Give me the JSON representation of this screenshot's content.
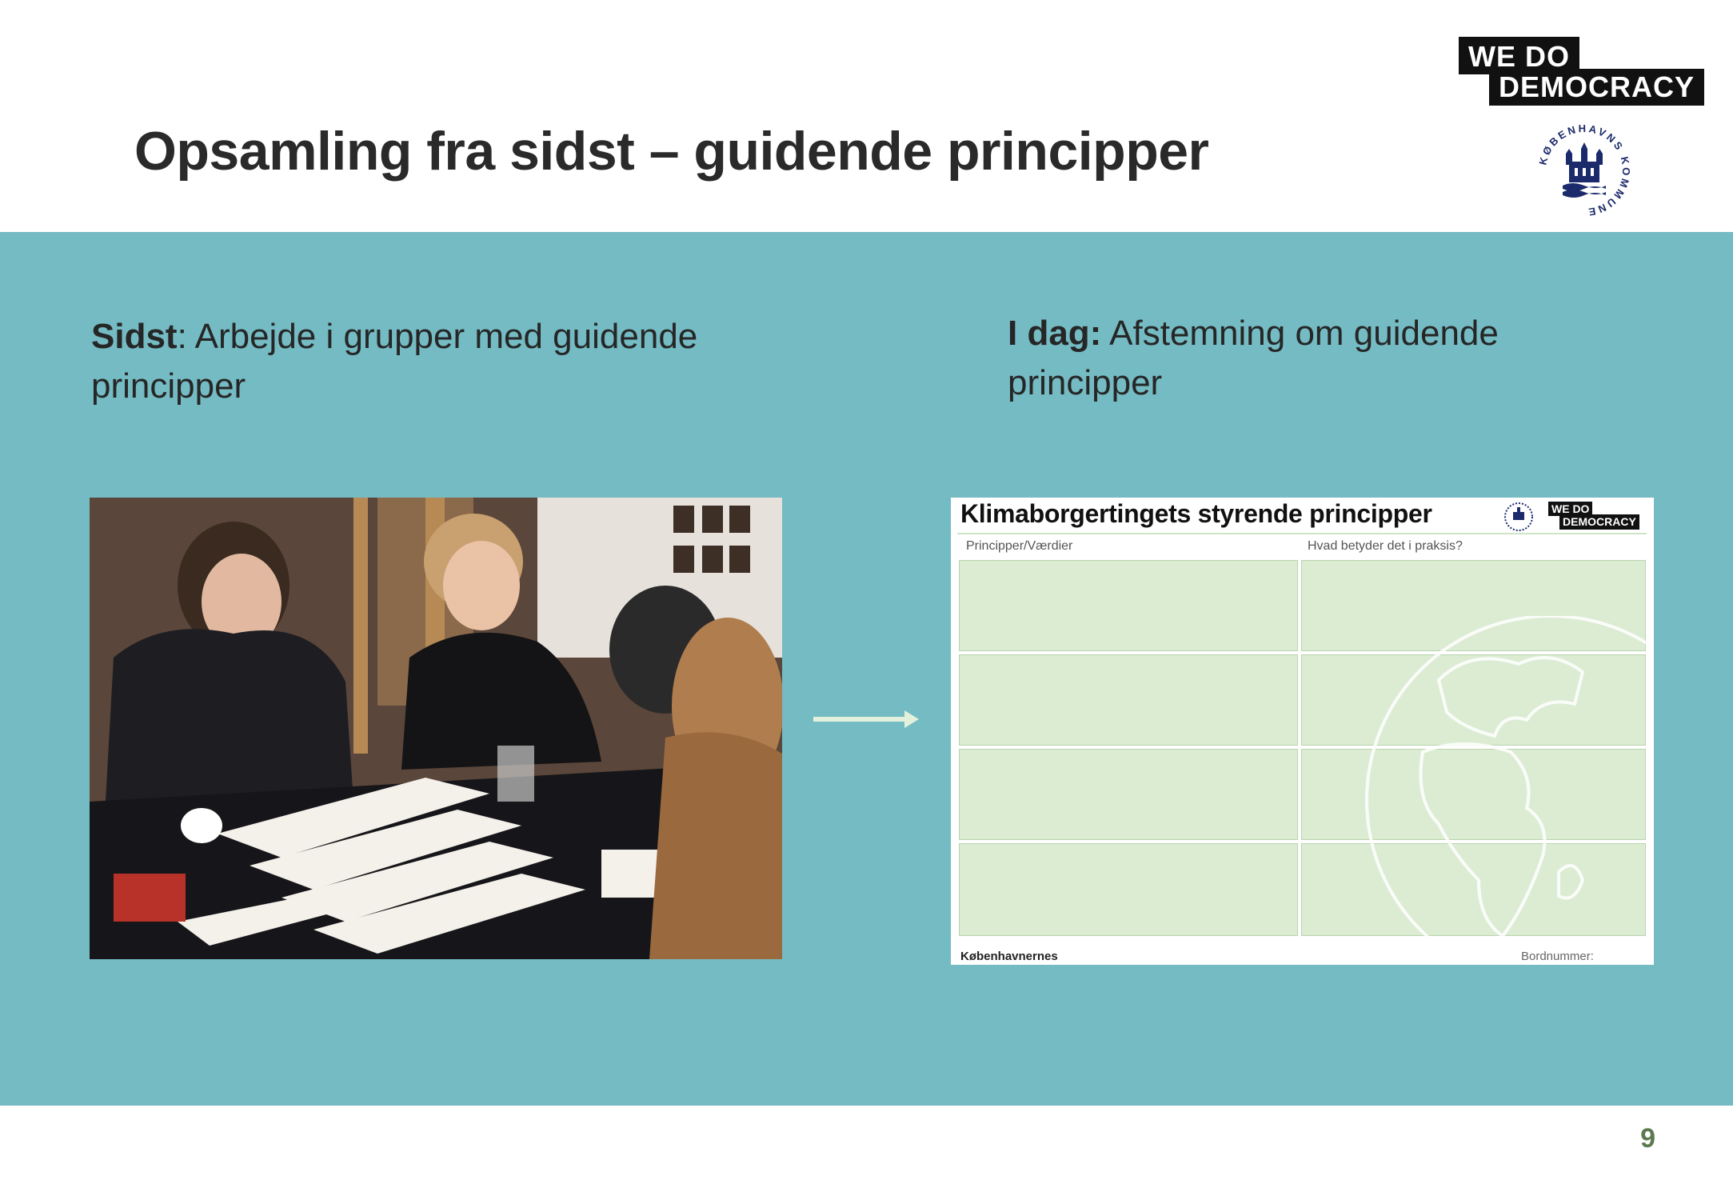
{
  "slide": {
    "title": "Opsamling fra sidst – guidende principper",
    "page_number": "9"
  },
  "logos": {
    "wdd_line1": "WE  DO",
    "wdd_line2": "DEMOCRACY",
    "kk_text": "KØBENHAVNS KOMMUNE"
  },
  "left": {
    "label": "Sidst",
    "text": ": Arbejde i grupper med guidende principper",
    "image": "photo-workshop"
  },
  "right": {
    "label": "I dag:",
    "text": " Afstemning om guidende principper"
  },
  "worksheet": {
    "title": "Klimaborgertingets styrende principper",
    "col1_header": "Principper/Værdier",
    "col2_header": "Hvad betyder det i praksis?",
    "footer_left": "Københavnernes",
    "footer_right": "Bordnummer:",
    "logo_line1": "WE  DO",
    "logo_line2": "DEMOCRACY"
  },
  "colors": {
    "band": "#74bbc3",
    "arrow": "#e3f1dc",
    "cell": "#dcecd3",
    "page_number": "#5c7a50"
  }
}
